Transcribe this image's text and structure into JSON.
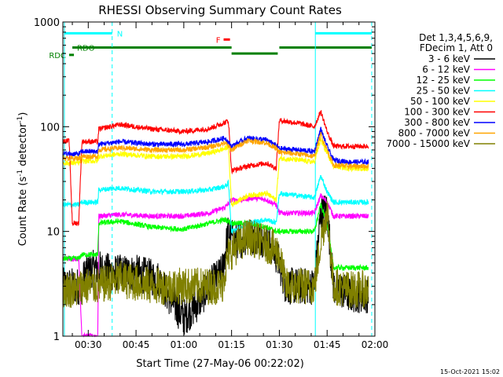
{
  "chart_data": {
    "type": "line",
    "title": "RHESSI Observing Summary Count Rates",
    "xlabel": "Start Time (27-May-06 00:22:02)",
    "ylabel_main": "Count Rate (s",
    "ylabel_sup1": "-1",
    "ylabel_mid": " detector",
    "ylabel_sup2": "-1",
    "ylabel_end": ")",
    "ylog": true,
    "xlim_minutes": [
      22.03,
      120.0
    ],
    "ylim": [
      1,
      1000
    ],
    "x_ticks": [
      {
        "label": "00:30",
        "minute": 30
      },
      {
        "label": "00:45",
        "minute": 45
      },
      {
        "label": "01:00",
        "minute": 60
      },
      {
        "label": "01:15",
        "minute": 75
      },
      {
        "label": "01:30",
        "minute": 90
      },
      {
        "label": "01:45",
        "minute": 105
      },
      {
        "label": "02:00",
        "minute": 120
      }
    ],
    "y_ticks": [
      {
        "label": "1",
        "value": 1
      },
      {
        "label": "10",
        "value": 10
      },
      {
        "label": "100",
        "value": 100
      },
      {
        "label": "1000",
        "value": 1000
      }
    ],
    "legend_header": [
      "Det 1,3,4,5,6,9,",
      "FDecim 1, Att 0"
    ],
    "series": [
      {
        "name": "3 - 6 keV",
        "color": "#000000",
        "points": [
          [
            22,
            3
          ],
          [
            28,
            3
          ],
          [
            29,
            4
          ],
          [
            32,
            4.5
          ],
          [
            38,
            4
          ],
          [
            45,
            4
          ],
          [
            52,
            3.5
          ],
          [
            57,
            2
          ],
          [
            60,
            1.5
          ],
          [
            64,
            2
          ],
          [
            68,
            3
          ],
          [
            72,
            4
          ],
          [
            74,
            10
          ],
          [
            76,
            8
          ],
          [
            80,
            9
          ],
          [
            84,
            9
          ],
          [
            88,
            7
          ],
          [
            90,
            5
          ],
          [
            92,
            3
          ],
          [
            97,
            3
          ],
          [
            101,
            3
          ],
          [
            103,
            15
          ],
          [
            105,
            16
          ],
          [
            107,
            3
          ],
          [
            112,
            2.5
          ],
          [
            118,
            2.5
          ]
        ]
      },
      {
        "name": "6 - 12 keV",
        "color": "#ff00ff",
        "points": [
          [
            22,
            5.5
          ],
          [
            27,
            5.5
          ],
          [
            28,
            1
          ],
          [
            33,
            1
          ],
          [
            33.3,
            14
          ],
          [
            40,
            14.5
          ],
          [
            50,
            14
          ],
          [
            60,
            14
          ],
          [
            68,
            15
          ],
          [
            73,
            17
          ],
          [
            75,
            20
          ],
          [
            78,
            20
          ],
          [
            82,
            21
          ],
          [
            86,
            20
          ],
          [
            89,
            18
          ],
          [
            90,
            15
          ],
          [
            95,
            15
          ],
          [
            101,
            15
          ],
          [
            103,
            22
          ],
          [
            105,
            19
          ],
          [
            107,
            14
          ],
          [
            110,
            14
          ],
          [
            115,
            14
          ],
          [
            118,
            14
          ]
        ]
      },
      {
        "name": "12 - 25 keV",
        "color": "#00ff00",
        "points": [
          [
            22,
            5.5
          ],
          [
            27,
            5.5
          ],
          [
            28,
            6
          ],
          [
            33,
            6
          ],
          [
            33.3,
            12
          ],
          [
            40,
            12.5
          ],
          [
            50,
            11
          ],
          [
            60,
            10.5
          ],
          [
            68,
            12
          ],
          [
            73,
            13
          ],
          [
            75,
            12
          ],
          [
            80,
            12
          ],
          [
            86,
            11
          ],
          [
            89,
            10
          ],
          [
            90,
            10
          ],
          [
            96,
            10
          ],
          [
            101,
            10
          ],
          [
            103,
            18
          ],
          [
            105,
            12
          ],
          [
            107,
            4.5
          ],
          [
            112,
            4.5
          ],
          [
            118,
            4.5
          ]
        ]
      },
      {
        "name": "25 - 50 keV",
        "color": "#00ffff",
        "points": [
          [
            22,
            18
          ],
          [
            27,
            18
          ],
          [
            28,
            19
          ],
          [
            33,
            19
          ],
          [
            33.3,
            25
          ],
          [
            40,
            26
          ],
          [
            50,
            24
          ],
          [
            60,
            24
          ],
          [
            68,
            25
          ],
          [
            73,
            27
          ],
          [
            74,
            29
          ],
          [
            75,
            10
          ],
          [
            80,
            12
          ],
          [
            86,
            13
          ],
          [
            89,
            12
          ],
          [
            90,
            23
          ],
          [
            96,
            22
          ],
          [
            101,
            21
          ],
          [
            103,
            34
          ],
          [
            105,
            24
          ],
          [
            107,
            19
          ],
          [
            112,
            19
          ],
          [
            118,
            19
          ]
        ]
      },
      {
        "name": "50 - 100 keV",
        "color": "#ffff00",
        "points": [
          [
            22,
            45
          ],
          [
            27,
            45
          ],
          [
            28,
            47
          ],
          [
            33,
            47
          ],
          [
            33.3,
            52
          ],
          [
            40,
            55
          ],
          [
            50,
            52
          ],
          [
            60,
            52
          ],
          [
            68,
            56
          ],
          [
            73,
            62
          ],
          [
            74,
            65
          ],
          [
            75,
            18
          ],
          [
            80,
            22
          ],
          [
            86,
            23
          ],
          [
            89,
            20
          ],
          [
            90,
            50
          ],
          [
            96,
            48
          ],
          [
            101,
            46
          ],
          [
            103,
            75
          ],
          [
            105,
            55
          ],
          [
            107,
            42
          ],
          [
            112,
            40
          ],
          [
            118,
            40
          ]
        ]
      },
      {
        "name": "100 - 300 keV",
        "color": "#ff0000",
        "points": [
          [
            22,
            73
          ],
          [
            24,
            73
          ],
          [
            25,
            12
          ],
          [
            27,
            12
          ],
          [
            28,
            72
          ],
          [
            33,
            72
          ],
          [
            33.3,
            95
          ],
          [
            40,
            105
          ],
          [
            50,
            95
          ],
          [
            60,
            90
          ],
          [
            68,
            96
          ],
          [
            73,
            110
          ],
          [
            74,
            115
          ],
          [
            75,
            38
          ],
          [
            80,
            42
          ],
          [
            86,
            45
          ],
          [
            89,
            40
          ],
          [
            90,
            115
          ],
          [
            96,
            108
          ],
          [
            101,
            100
          ],
          [
            103,
            140
          ],
          [
            105,
            90
          ],
          [
            107,
            65
          ],
          [
            112,
            65
          ],
          [
            118,
            65
          ]
        ]
      },
      {
        "name": "300 - 800 keV",
        "color": "#0000ff",
        "points": [
          [
            22,
            55
          ],
          [
            27,
            55
          ],
          [
            28,
            58
          ],
          [
            33,
            58
          ],
          [
            33.3,
            68
          ],
          [
            40,
            72
          ],
          [
            50,
            68
          ],
          [
            60,
            68
          ],
          [
            68,
            72
          ],
          [
            73,
            78
          ],
          [
            75,
            65
          ],
          [
            80,
            78
          ],
          [
            86,
            75
          ],
          [
            89,
            66
          ],
          [
            90,
            62
          ],
          [
            96,
            60
          ],
          [
            101,
            58
          ],
          [
            103,
            95
          ],
          [
            105,
            65
          ],
          [
            107,
            48
          ],
          [
            112,
            46
          ],
          [
            118,
            46
          ]
        ]
      },
      {
        "name": "800 - 7000 keV",
        "color": "#ffa500",
        "points": [
          [
            22,
            50
          ],
          [
            27,
            50
          ],
          [
            28,
            52
          ],
          [
            33,
            52
          ],
          [
            33.3,
            60
          ],
          [
            40,
            63
          ],
          [
            50,
            60
          ],
          [
            60,
            60
          ],
          [
            68,
            64
          ],
          [
            73,
            70
          ],
          [
            75,
            60
          ],
          [
            80,
            74
          ],
          [
            86,
            70
          ],
          [
            89,
            62
          ],
          [
            90,
            57
          ],
          [
            96,
            55
          ],
          [
            101,
            52
          ],
          [
            103,
            85
          ],
          [
            105,
            60
          ],
          [
            107,
            43
          ],
          [
            112,
            42
          ],
          [
            118,
            42
          ]
        ]
      },
      {
        "name": "7000 - 15000 keV",
        "color": "#808000",
        "points": [
          [
            22,
            2.8
          ],
          [
            27,
            2.8
          ],
          [
            28,
            3
          ],
          [
            33,
            3
          ],
          [
            40,
            3.5
          ],
          [
            50,
            3
          ],
          [
            60,
            3
          ],
          [
            68,
            3
          ],
          [
            72,
            3
          ],
          [
            74,
            6
          ],
          [
            76,
            7
          ],
          [
            80,
            9
          ],
          [
            84,
            8
          ],
          [
            88,
            7
          ],
          [
            90,
            6
          ],
          [
            92,
            3
          ],
          [
            97,
            3
          ],
          [
            101,
            3
          ],
          [
            103,
            8
          ],
          [
            105,
            16
          ],
          [
            107,
            3
          ],
          [
            112,
            2.8
          ],
          [
            118,
            2.8
          ]
        ]
      }
    ],
    "vertical_lines": [
      {
        "minute": 22.5,
        "style": "solid",
        "color": "#00ffff"
      },
      {
        "minute": 37.5,
        "style": "dashed",
        "color": "#00ffff"
      },
      {
        "minute": 101.3,
        "style": "solid",
        "color": "#00ffff"
      },
      {
        "minute": 119.0,
        "style": "dashed",
        "color": "#00ffff"
      }
    ],
    "flag_bars": [
      {
        "label": "N",
        "color": "#00ffff",
        "y": 780,
        "segments": [
          [
            22.5,
            37.5
          ],
          [
            101.3,
            119.0
          ]
        ]
      },
      {
        "label": "F",
        "color": "#ff0000",
        "y": 680,
        "segments": [
          [
            72.5,
            74.5
          ]
        ]
      },
      {
        "label": "RDO",
        "color": "#008000",
        "y": 570,
        "segments": [
          [
            25,
            75
          ],
          [
            90,
            119
          ]
        ]
      },
      {
        "label": "",
        "color": "#008000",
        "y": 500,
        "segments": [
          [
            75,
            89.5
          ]
        ]
      },
      {
        "label": "RDC",
        "color": "#008000",
        "y": 485,
        "segments": [
          [
            24,
            25.5
          ]
        ]
      }
    ]
  },
  "footer": {
    "timestamp": "15-Oct-2021 15:02"
  }
}
